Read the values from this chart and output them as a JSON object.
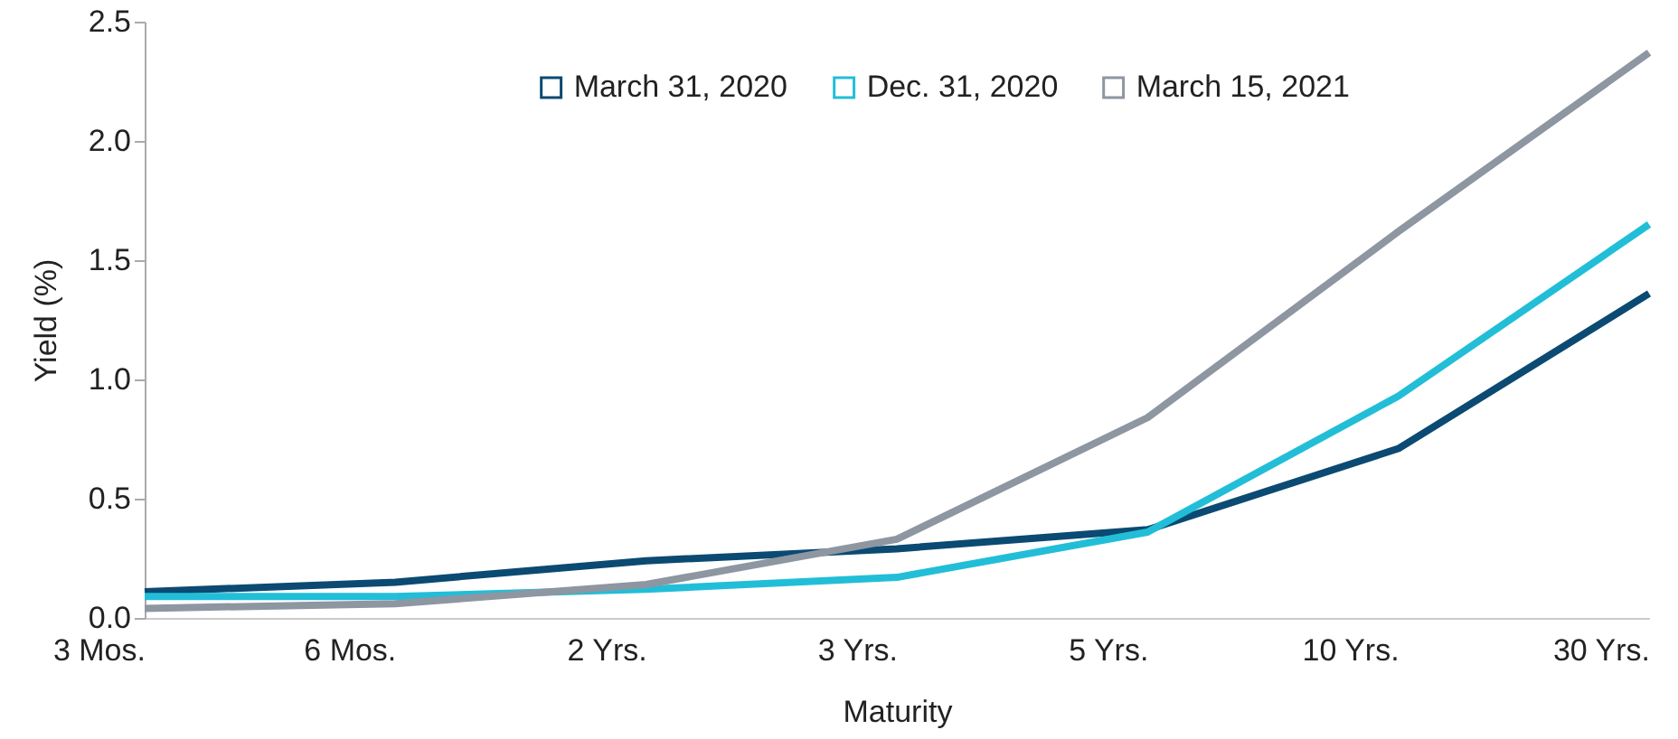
{
  "chart_data": {
    "type": "line",
    "xlabel": "Maturity",
    "ylabel": "Yield (%)",
    "categories": [
      "3 Mos.",
      "6 Mos.",
      "2 Yrs.",
      "3 Yrs.",
      "5 Yrs.",
      "10 Yrs.",
      "30 Yrs."
    ],
    "series": [
      {
        "name": "March 31, 2020",
        "color": "#0b4a72",
        "values": [
          0.11,
          0.15,
          0.24,
          0.29,
          0.37,
          0.71,
          1.36
        ]
      },
      {
        "name": "Dec. 31, 2020",
        "color": "#22bed8",
        "values": [
          0.09,
          0.09,
          0.12,
          0.17,
          0.36,
          0.93,
          1.65
        ]
      },
      {
        "name": "March 15, 2021",
        "color": "#8d96a1",
        "values": [
          0.04,
          0.06,
          0.14,
          0.33,
          0.84,
          1.62,
          2.37
        ]
      }
    ],
    "ylim": [
      0,
      2.5
    ],
    "yticks": [
      {
        "value": 0,
        "label": "0.0"
      },
      {
        "value": 0.5,
        "label": "0.5"
      },
      {
        "value": 1,
        "label": "1.0"
      },
      {
        "value": 1.5,
        "label": "1.5"
      },
      {
        "value": 2,
        "label": "2.0"
      },
      {
        "value": 2.5,
        "label": "2.5"
      }
    ],
    "grid": false,
    "legend": "top",
    "marker": "none",
    "line_style": "solid"
  }
}
